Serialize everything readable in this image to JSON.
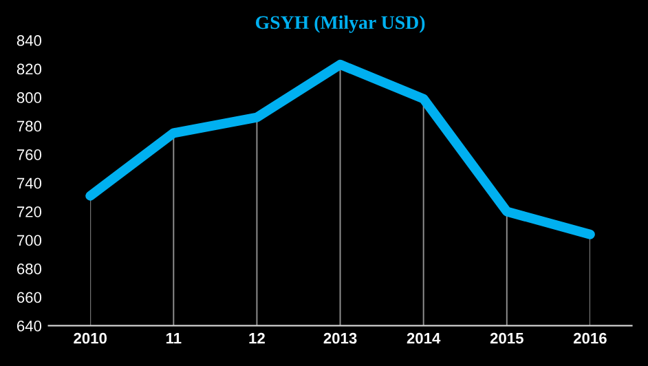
{
  "chart_data": {
    "type": "line",
    "title": "GSYH (Milyar USD)",
    "categories": [
      "2010",
      "11",
      "12",
      "2013",
      "2014",
      "2015",
      "2016"
    ],
    "series": [
      {
        "color": "#00b0f0",
        "values": [
          731,
          775,
          786,
          823,
          799,
          720,
          704
        ]
      }
    ],
    "ylim": [
      640,
      840
    ],
    "yticks": [
      640,
      660,
      680,
      700,
      720,
      740,
      760,
      780,
      800,
      820,
      840
    ],
    "grid": "x",
    "legend": false,
    "marker": "none",
    "line_style": "solid"
  }
}
